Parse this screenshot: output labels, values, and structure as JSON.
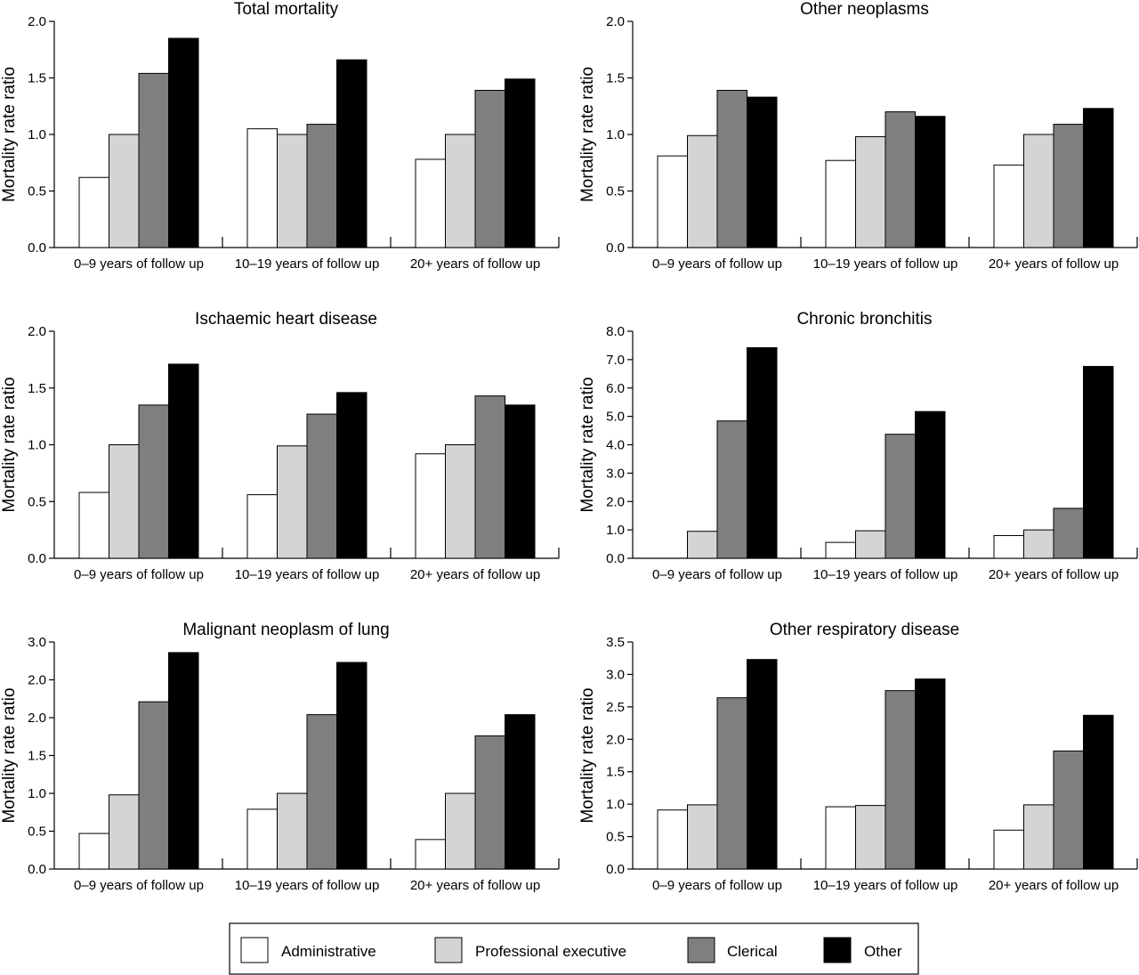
{
  "colors": {
    "Administrative": "#ffffff",
    "Professional executive": "#d4d4d4",
    "Clerical": "#7f7f7f",
    "Other": "#000000",
    "bar_stroke": "#000000",
    "axis": "#000000"
  },
  "legend": {
    "entries": [
      "Administrative",
      "Professional executive",
      "Clerical",
      "Other"
    ]
  },
  "chart_data": [
    {
      "type": "bar",
      "title": "Total mortality",
      "ylabel": "Mortality rate ratio",
      "xlabel": "",
      "ylim": [
        0,
        2.0
      ],
      "yticks": [
        "0.0",
        "0.5",
        "1.0",
        "1.5",
        "2.0"
      ],
      "categories": [
        "0–9 years of follow up",
        "10–19 years of follow up",
        "20+ years of follow up"
      ],
      "series": [
        {
          "name": "Administrative",
          "values": [
            0.62,
            1.05,
            0.78
          ]
        },
        {
          "name": "Professional executive",
          "values": [
            1.0,
            1.0,
            1.0
          ]
        },
        {
          "name": "Clerical",
          "values": [
            1.54,
            1.09,
            1.39
          ]
        },
        {
          "name": "Other",
          "values": [
            1.85,
            1.66,
            1.49
          ]
        }
      ],
      "grid": false
    },
    {
      "type": "bar",
      "title": "Other neoplasms",
      "ylabel": "Mortality rate ratio",
      "xlabel": "",
      "ylim": [
        0,
        2.0
      ],
      "yticks": [
        "0.0",
        "0.5",
        "1.0",
        "1.5",
        "2.0"
      ],
      "categories": [
        "0–9 years of follow up",
        "10–19 years of follow up",
        "20+ years of follow up"
      ],
      "series": [
        {
          "name": "Administrative",
          "values": [
            0.81,
            0.77,
            0.73
          ]
        },
        {
          "name": "Professional executive",
          "values": [
            0.99,
            0.98,
            1.0
          ]
        },
        {
          "name": "Clerical",
          "values": [
            1.39,
            1.2,
            1.09
          ]
        },
        {
          "name": "Other",
          "values": [
            1.33,
            1.16,
            1.23
          ]
        }
      ],
      "grid": false
    },
    {
      "type": "bar",
      "title": "Ischaemic heart disease",
      "ylabel": "Mortality rate ratio",
      "xlabel": "",
      "ylim": [
        0,
        2.0
      ],
      "yticks": [
        "0.0",
        "0.5",
        "1.0",
        "1.5",
        "2.0"
      ],
      "categories": [
        "0–9 years of follow up",
        "10–19 years of follow up",
        "20+ years of follow up"
      ],
      "series": [
        {
          "name": "Administrative",
          "values": [
            0.58,
            0.56,
            0.92
          ]
        },
        {
          "name": "Professional executive",
          "values": [
            1.0,
            0.99,
            1.0
          ]
        },
        {
          "name": "Clerical",
          "values": [
            1.35,
            1.27,
            1.43
          ]
        },
        {
          "name": "Other",
          "values": [
            1.71,
            1.46,
            1.35
          ]
        }
      ],
      "grid": false
    },
    {
      "type": "bar",
      "title": "Chronic bronchitis",
      "ylabel": "Mortality rate ratio",
      "xlabel": "",
      "ylim": [
        0,
        8.0
      ],
      "yticks": [
        "0.0",
        "1.0",
        "2.0",
        "3.0",
        "4.0",
        "5.0",
        "6.0",
        "7.0",
        "8.0"
      ],
      "categories": [
        "0–9 years of follow up",
        "10–19 years of follow up",
        "20+ years of follow up"
      ],
      "series": [
        {
          "name": "Administrative",
          "values": [
            0,
            0.56,
            0.8
          ]
        },
        {
          "name": "Professional executive",
          "values": [
            0.95,
            0.97,
            1.0
          ]
        },
        {
          "name": "Clerical",
          "values": [
            4.84,
            4.37,
            1.76
          ]
        },
        {
          "name": "Other",
          "values": [
            7.42,
            5.17,
            6.76
          ]
        }
      ],
      "grid": false
    },
    {
      "type": "bar",
      "title": "Malignant neoplasm of lung",
      "ylabel": "Mortality rate ratio",
      "xlabel": "",
      "ylim": [
        0,
        3.0
      ],
      "yticks": [
        "0.0",
        "0.5",
        "1.0",
        "1.5",
        "2.0",
        "2.0",
        "3.0"
      ],
      "categories": [
        "0–9 years of follow up",
        "10–19 years of follow up",
        "20+ years of follow up"
      ],
      "series": [
        {
          "name": "Administrative",
          "values": [
            0.47,
            0.79,
            0.39
          ]
        },
        {
          "name": "Professional executive",
          "values": [
            0.98,
            1.0,
            1.0
          ]
        },
        {
          "name": "Clerical",
          "values": [
            2.21,
            2.04,
            1.76
          ]
        },
        {
          "name": "Other",
          "values": [
            2.86,
            2.73,
            2.04
          ]
        }
      ],
      "grid": false
    },
    {
      "type": "bar",
      "title": "Other respiratory disease",
      "ylabel": "Mortality rate ratio",
      "xlabel": "",
      "ylim": [
        0,
        3.5
      ],
      "yticks": [
        "0.0",
        "0.5",
        "1.0",
        "1.5",
        "2.0",
        "2.5",
        "3.0",
        "3.5"
      ],
      "categories": [
        "0–9 years of follow up",
        "10–19 years of follow up",
        "20+ years of follow up"
      ],
      "series": [
        {
          "name": "Administrative",
          "values": [
            0.91,
            0.96,
            0.6
          ]
        },
        {
          "name": "Professional executive",
          "values": [
            0.99,
            0.98,
            0.99
          ]
        },
        {
          "name": "Clerical",
          "values": [
            2.64,
            2.75,
            1.82
          ]
        },
        {
          "name": "Other",
          "values": [
            3.23,
            2.93,
            2.37
          ]
        }
      ],
      "grid": false
    }
  ]
}
